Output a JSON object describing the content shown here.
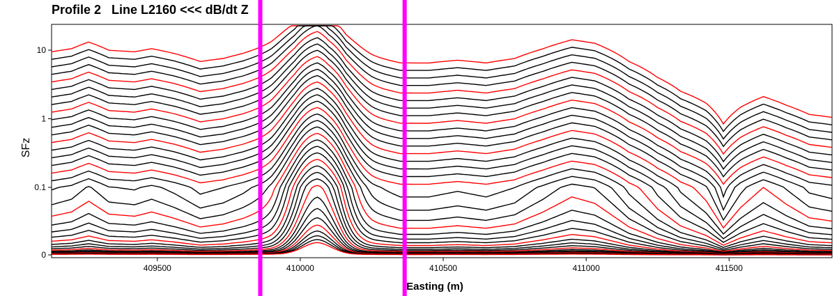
{
  "colors": {
    "background": "#ffffff",
    "trace_black": "#000000",
    "trace_red": "#ff0000",
    "marker": "#ff00ff"
  },
  "chart_data": {
    "type": "line",
    "title": "Profile 2   Line L2160 <<< dB/dt Z",
    "xlabel": "Easting (m)",
    "ylabel": "SFz",
    "xlim": [
      409130,
      411860
    ],
    "y_scale": "symmetric-log",
    "y_ticks": [
      0,
      0.1,
      1,
      10
    ],
    "y_tick_labels": [
      "0",
      "0.1",
      "1",
      "10"
    ],
    "x_ticks": [
      409500,
      410000,
      410500,
      411000,
      411500
    ],
    "x_tick_labels": [
      "409500",
      "410000",
      "410500",
      "411000",
      "411500"
    ],
    "grid": false,
    "legend": "none",
    "series_note_color_every": 4,
    "channel_count": 37,
    "gate_decay_factor": 0.79,
    "early_channel_amplitude": 10.5,
    "marker_lines_x": [
      409860,
      410365
    ],
    "profile_shape": [
      {
        "x": 409130,
        "rel": 0.9
      },
      {
        "x": 409200,
        "rel": 1.0
      },
      {
        "x": 409260,
        "rel": 1.25
      },
      {
        "x": 409330,
        "rel": 0.95
      },
      {
        "x": 409420,
        "rel": 0.9
      },
      {
        "x": 409480,
        "rel": 1.0
      },
      {
        "x": 409560,
        "rel": 0.85
      },
      {
        "x": 409650,
        "rel": 0.65
      },
      {
        "x": 409730,
        "rel": 0.72
      },
      {
        "x": 409800,
        "rel": 0.85
      },
      {
        "x": 409900,
        "rel": 1.1
      },
      {
        "x": 409980,
        "rel": 1.5
      },
      {
        "x": 410030,
        "rel": 2.2
      },
      {
        "x": 410060,
        "rel": 2.6
      },
      {
        "x": 410100,
        "rel": 1.6
      },
      {
        "x": 410160,
        "rel": 0.95
      },
      {
        "x": 410250,
        "rel": 0.75
      },
      {
        "x": 410350,
        "rel": 0.62
      },
      {
        "x": 410450,
        "rel": 0.62
      },
      {
        "x": 410550,
        "rel": 0.68
      },
      {
        "x": 410650,
        "rel": 0.62
      },
      {
        "x": 410750,
        "rel": 0.72
      },
      {
        "x": 410850,
        "rel": 1.0
      },
      {
        "x": 410950,
        "rel": 1.35
      },
      {
        "x": 411030,
        "rel": 1.2
      },
      {
        "x": 411150,
        "rel": 0.65
      },
      {
        "x": 411250,
        "rel": 0.38
      },
      {
        "x": 411330,
        "rel": 0.24
      },
      {
        "x": 411420,
        "rel": 0.16
      },
      {
        "x": 411480,
        "rel": 0.08
      },
      {
        "x": 411540,
        "rel": 0.14
      },
      {
        "x": 411620,
        "rel": 0.2
      },
      {
        "x": 411700,
        "rel": 0.15
      },
      {
        "x": 411780,
        "rel": 0.11
      },
      {
        "x": 411860,
        "rel": 0.1
      }
    ]
  }
}
